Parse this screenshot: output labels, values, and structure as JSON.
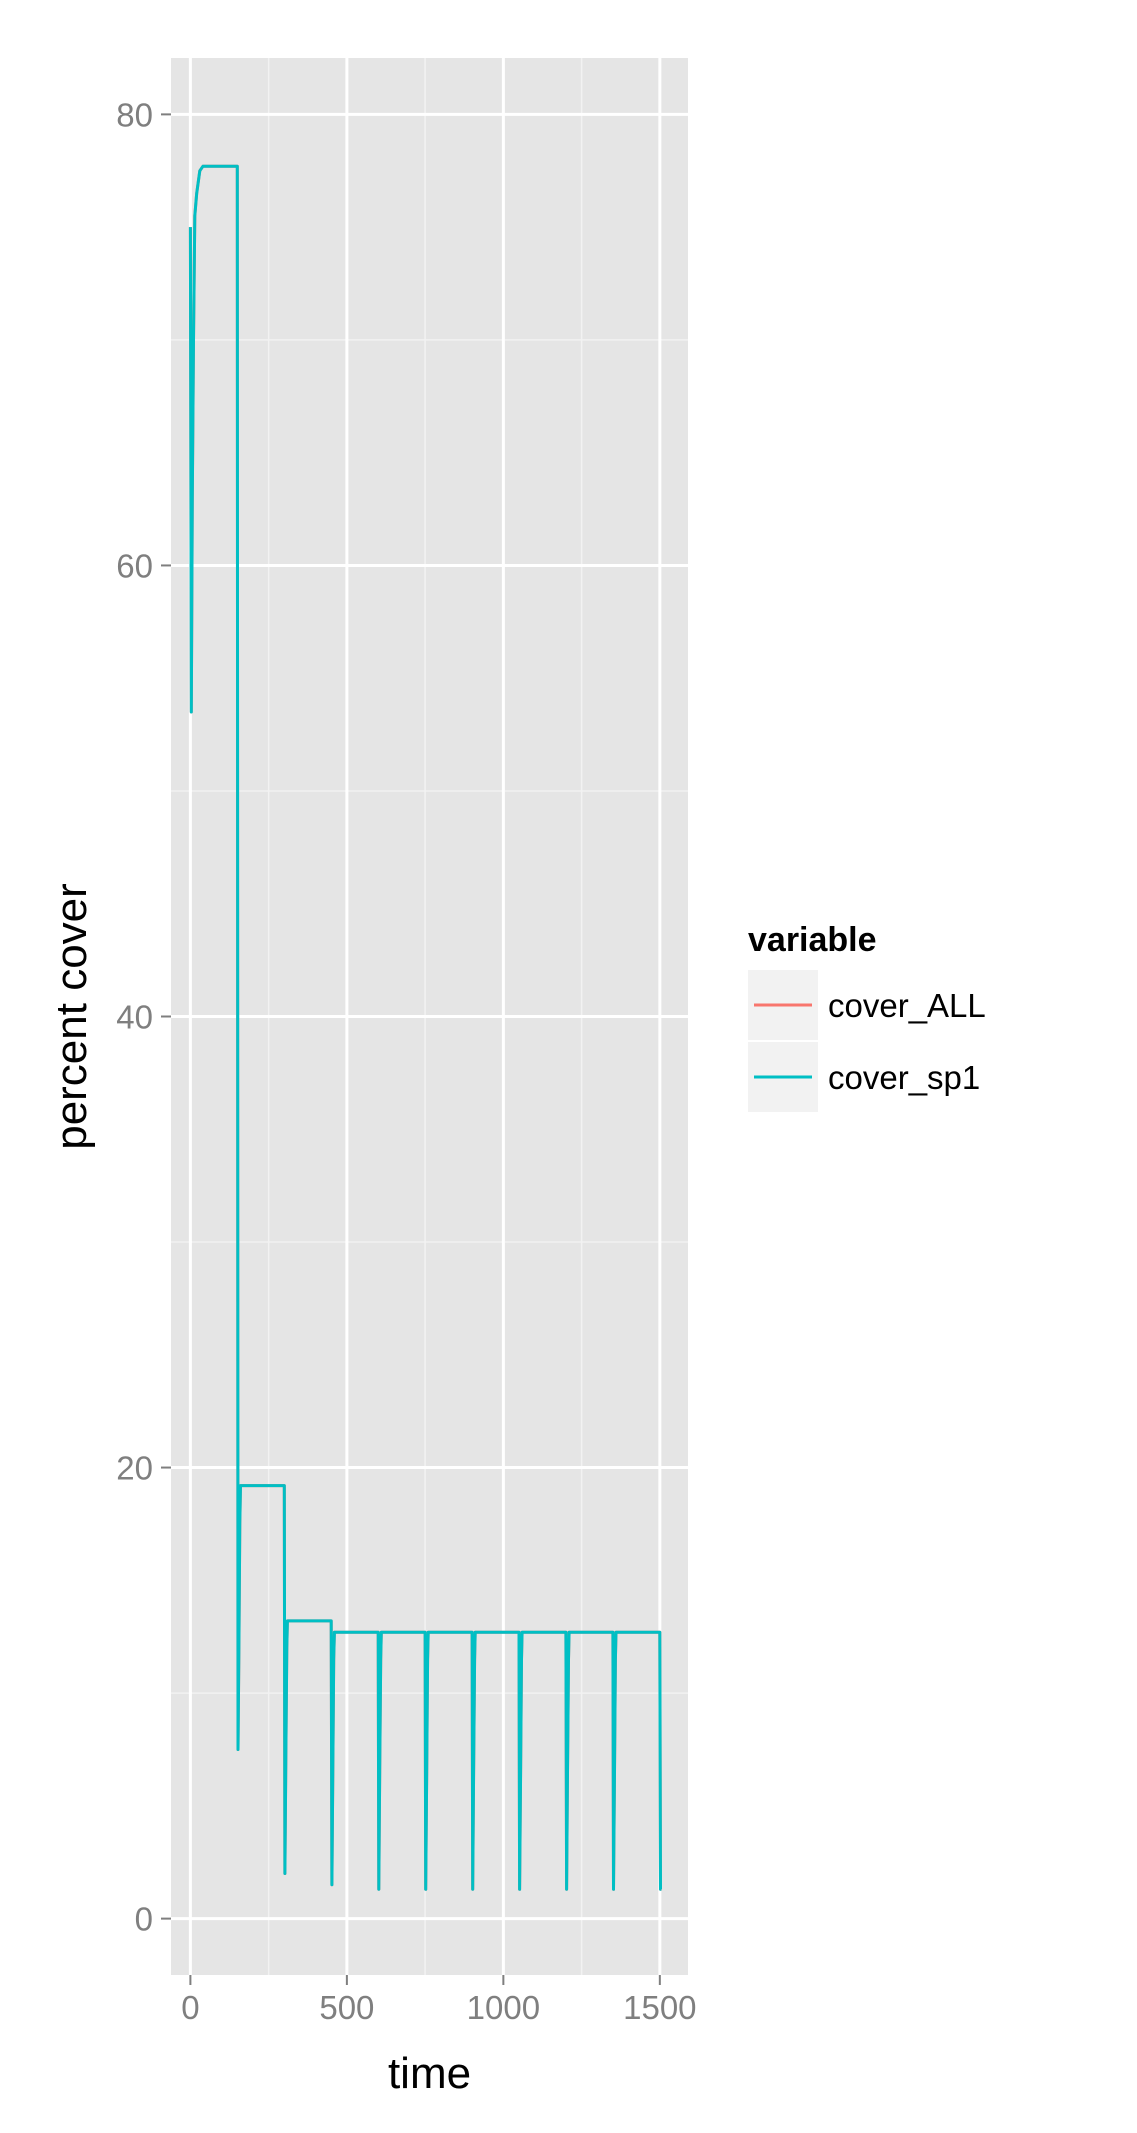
{
  "chart_data": {
    "type": "line",
    "title": "",
    "xlabel": "time",
    "ylabel": "percent cover",
    "xlim": [
      -62,
      1590
    ],
    "ylim": [
      -2.5,
      82.5
    ],
    "x_ticks": [
      0,
      500,
      1000,
      1500
    ],
    "x_tick_labels": [
      "0",
      "500",
      "1000",
      "1500"
    ],
    "y_ticks": [
      0,
      20,
      40,
      60,
      80
    ],
    "y_tick_labels": [
      "0",
      "20",
      "40",
      "60",
      "80"
    ],
    "grid": true,
    "panel_background": "#e5e5e5",
    "legend": {
      "title": "variable",
      "position": "right"
    },
    "series": [
      {
        "name": "cover_ALL",
        "color": "#f8766d",
        "x": [
          0,
          3,
          6,
          10,
          14,
          20,
          30,
          40,
          50,
          100,
          150,
          152,
          155,
          158,
          160,
          200,
          300,
          302,
          305,
          308,
          310,
          350,
          450,
          452,
          455,
          458,
          460,
          500,
          600,
          602,
          605,
          608,
          610,
          650,
          750,
          752,
          755,
          758,
          760,
          800,
          900,
          902,
          905,
          908,
          910,
          950,
          1050,
          1052,
          1055,
          1058,
          1060,
          1100,
          1200,
          1202,
          1205,
          1208,
          1210,
          1250,
          1350,
          1352,
          1355,
          1358,
          1360,
          1400,
          1500,
          1502,
          1505
        ],
        "y": [
          75,
          53.5,
          63,
          70,
          75.5,
          76.5,
          77.5,
          77.7,
          77.7,
          77.7,
          77.7,
          7.5,
          12,
          17.5,
          19.2,
          19.2,
          19.2,
          2,
          7.5,
          12,
          13.2,
          13.2,
          13.2,
          1.5,
          6.5,
          11.5,
          12.7,
          12.7,
          12.7,
          1.3,
          6.5,
          11.5,
          12.7,
          12.7,
          12.7,
          1.3,
          6.5,
          11.5,
          12.7,
          12.7,
          12.7,
          1.3,
          6.5,
          11.5,
          12.7,
          12.7,
          12.7,
          1.3,
          6.5,
          11.5,
          12.7,
          12.7,
          12.7,
          1.3,
          6.5,
          11.5,
          12.7,
          12.7,
          12.7,
          1.3,
          6.5,
          11.5,
          12.7,
          12.7,
          12.7,
          1.3,
          1.3
        ]
      },
      {
        "name": "cover_sp1",
        "color": "#00bfc4",
        "x": [
          0,
          3,
          6,
          10,
          14,
          20,
          30,
          40,
          50,
          100,
          150,
          152,
          155,
          158,
          160,
          200,
          300,
          302,
          305,
          308,
          310,
          350,
          450,
          452,
          455,
          458,
          460,
          500,
          600,
          602,
          605,
          608,
          610,
          650,
          750,
          752,
          755,
          758,
          760,
          800,
          900,
          902,
          905,
          908,
          910,
          950,
          1050,
          1052,
          1055,
          1058,
          1060,
          1100,
          1200,
          1202,
          1205,
          1208,
          1210,
          1250,
          1350,
          1352,
          1355,
          1358,
          1360,
          1400,
          1500,
          1502,
          1505
        ],
        "y": [
          75,
          53.5,
          63,
          70,
          75.5,
          76.5,
          77.5,
          77.7,
          77.7,
          77.7,
          77.7,
          7.5,
          12,
          17.5,
          19.2,
          19.2,
          19.2,
          2,
          7.5,
          12,
          13.2,
          13.2,
          13.2,
          1.5,
          6.5,
          11.5,
          12.7,
          12.7,
          12.7,
          1.3,
          6.5,
          11.5,
          12.7,
          12.7,
          12.7,
          1.3,
          6.5,
          11.5,
          12.7,
          12.7,
          12.7,
          1.3,
          6.5,
          11.5,
          12.7,
          12.7,
          12.7,
          1.3,
          6.5,
          11.5,
          12.7,
          12.7,
          12.7,
          1.3,
          6.5,
          11.5,
          12.7,
          12.7,
          12.7,
          1.3,
          6.5,
          11.5,
          12.7,
          12.7,
          12.7,
          1.3,
          1.3
        ]
      }
    ]
  }
}
